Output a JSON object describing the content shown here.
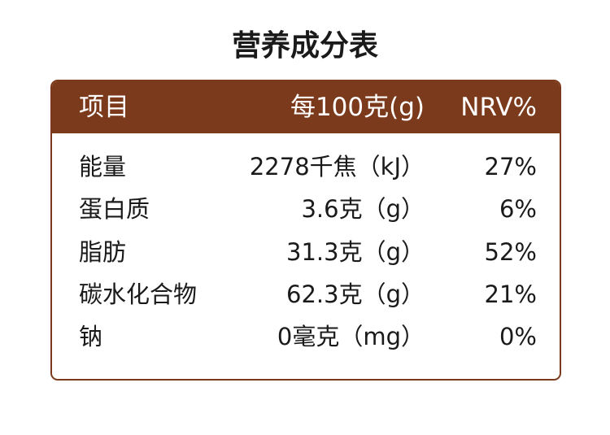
{
  "title": "营养成分表",
  "table": {
    "header": [
      "项目",
      "每100克(g)",
      "NRV%"
    ],
    "rows": [
      [
        "能量",
        "2278千焦（kJ）",
        "27%"
      ],
      [
        "蛋白质",
        "3.6克（g）",
        "6%"
      ],
      [
        "脂肪",
        "31.3克（g）",
        "52%"
      ],
      [
        "碳水化合物",
        "62.3克（g）",
        "21%"
      ],
      [
        "钠",
        "0毫克（mg）",
        "0%"
      ]
    ]
  }
}
